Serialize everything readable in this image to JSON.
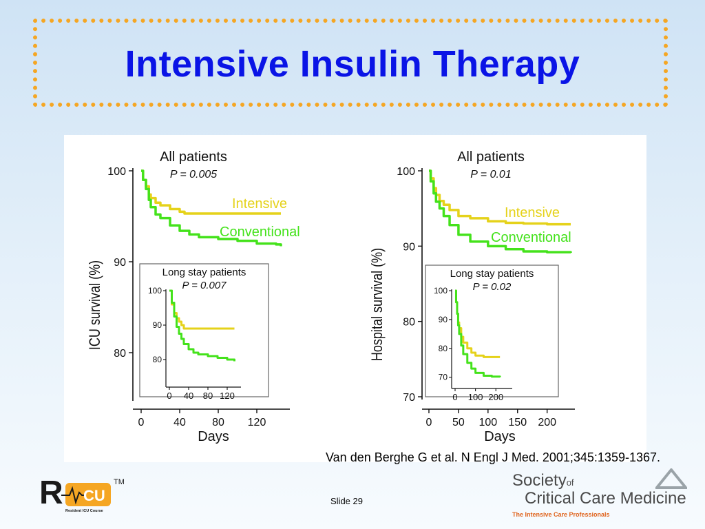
{
  "slide": {
    "title": "Intensive Insulin Therapy",
    "citation": "Van den Berghe G et al. N Engl J Med. 2001;345:1359-1367.",
    "slide_number": "Slide 29"
  },
  "logos": {
    "ricu_trademark": "TM",
    "ricu_subtitle": "Resident ICU Course",
    "sccm_society": "Society",
    "sccm_of": "of",
    "sccm_name": "Critical Care Medicine",
    "sccm_tagline": "The Intensive Care Professionals"
  },
  "colors": {
    "title": "#0a14e6",
    "intensive": "#e5d21a",
    "conventional": "#44e21b",
    "frame": "#f5a623"
  },
  "chart_data": [
    {
      "type": "line",
      "title": "All patients",
      "subtitle": "P = 0.005",
      "xlabel": "Days",
      "ylabel": "ICU survival (%)",
      "xlim": [
        0,
        150
      ],
      "ylim": [
        75,
        100
      ],
      "xticks": [
        0,
        40,
        80,
        120
      ],
      "yticks": [
        80,
        90,
        100
      ],
      "series": [
        {
          "name": "Intensive",
          "x": [
            0,
            2,
            5,
            8,
            10,
            15,
            20,
            30,
            40,
            45,
            60,
            100,
            145
          ],
          "y": [
            100,
            99.0,
            98.3,
            97.4,
            97.0,
            96.5,
            96.2,
            95.8,
            95.5,
            95.3,
            95.3,
            95.3,
            95.3
          ]
        },
        {
          "name": "Conventional",
          "x": [
            0,
            2,
            5,
            8,
            10,
            15,
            20,
            30,
            40,
            50,
            60,
            80,
            100,
            120,
            140,
            145
          ],
          "y": [
            100,
            99.0,
            98.0,
            96.8,
            96.0,
            95.2,
            94.8,
            94.0,
            93.4,
            93.0,
            92.7,
            92.5,
            92.3,
            92.0,
            91.9,
            91.7
          ]
        }
      ],
      "inset": {
        "title": "Long stay patients",
        "subtitle": "P = 0.007",
        "xlim": [
          0,
          140
        ],
        "ylim": [
          76,
          100
        ],
        "xticks": [
          0,
          40,
          80,
          120
        ],
        "yticks": [
          80,
          90,
          100
        ],
        "series": [
          {
            "name": "Intensive",
            "x": [
              0,
              5,
              10,
              15,
              20,
              25,
              30,
              135
            ],
            "y": [
              100,
              96.0,
              93.5,
              92.0,
              91.0,
              90.0,
              89.0,
              89.0
            ]
          },
          {
            "name": "Conventional",
            "x": [
              0,
              5,
              10,
              15,
              20,
              25,
              30,
              40,
              50,
              60,
              80,
              100,
              120,
              135
            ],
            "y": [
              100,
              96.5,
              92.5,
              89.5,
              87.5,
              86.0,
              84.5,
              83.0,
              82.0,
              81.5,
              81.0,
              80.5,
              80.0,
              79.5
            ]
          }
        ]
      }
    },
    {
      "type": "line",
      "title": "All patients",
      "subtitle": "P = 0.01",
      "xlabel": "Days",
      "ylabel": "Hospital survival (%)",
      "xlim": [
        0,
        240
      ],
      "ylim": [
        70,
        100
      ],
      "xticks": [
        0,
        50,
        100,
        150,
        200
      ],
      "yticks": [
        70,
        80,
        90,
        100
      ],
      "series": [
        {
          "name": "Intensive",
          "x": [
            0,
            3,
            8,
            12,
            18,
            25,
            35,
            50,
            70,
            100,
            130,
            160,
            200,
            240
          ],
          "y": [
            100,
            99.0,
            97.7,
            96.8,
            96.0,
            95.5,
            94.8,
            94.0,
            93.7,
            93.3,
            93.1,
            93.0,
            92.9,
            92.9
          ]
        },
        {
          "name": "Conventional",
          "x": [
            0,
            3,
            8,
            12,
            18,
            25,
            35,
            50,
            70,
            100,
            130,
            160,
            200,
            240
          ],
          "y": [
            100,
            98.6,
            97.0,
            95.9,
            95.0,
            94.0,
            92.8,
            91.5,
            90.6,
            90.0,
            89.6,
            89.3,
            89.2,
            89.1
          ]
        }
      ],
      "inset": {
        "title": "Long stay patients",
        "subtitle": "P = 0.02",
        "xlim": [
          0,
          260
        ],
        "ylim": [
          68,
          100
        ],
        "xticks": [
          0,
          100,
          200
        ],
        "yticks": [
          70,
          80,
          90,
          100
        ],
        "series": [
          {
            "name": "Intensive",
            "x": [
              0,
              5,
              10,
              15,
              20,
              30,
              40,
              60,
              80,
              100,
              140,
              220
            ],
            "y": [
              100,
              96.0,
              92.0,
              89.0,
              87.0,
              84.0,
              82.0,
              80.0,
              78.5,
              77.5,
              77.0,
              77.0
            ]
          },
          {
            "name": "Conventional",
            "x": [
              0,
              5,
              10,
              15,
              20,
              30,
              40,
              60,
              80,
              100,
              140,
              180,
              220
            ],
            "y": [
              100,
              96.0,
              92.0,
              88.0,
              85.0,
              81.0,
              78.0,
              75.0,
              73.0,
              71.5,
              70.5,
              70.2,
              70.0
            ]
          }
        ]
      }
    }
  ]
}
